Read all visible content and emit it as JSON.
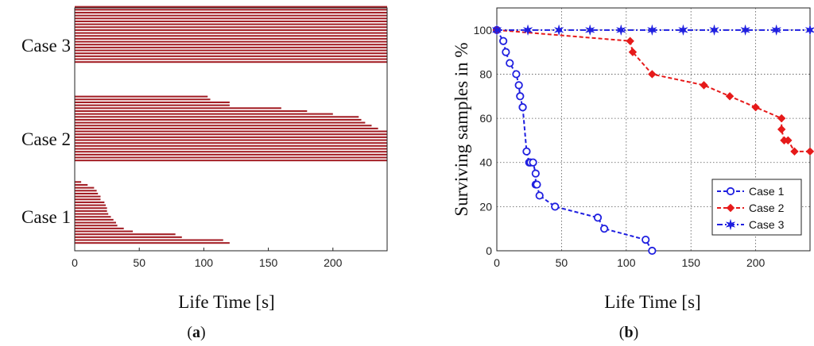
{
  "chart_data": [
    {
      "type": "bar",
      "orientation": "horizontal",
      "xlabel": "Life Time [s]",
      "caption": "(a)",
      "caption_letter": "a",
      "xlim": [
        0,
        242
      ],
      "xticks": [
        "0",
        "50",
        "100",
        "150",
        "200"
      ],
      "bar_color": "#a31e25",
      "groups": [
        {
          "label": "Case 1",
          "values": [
            120,
            115,
            83,
            78,
            45,
            38,
            33,
            32,
            30,
            28,
            26,
            25,
            25,
            24,
            23,
            20,
            20,
            18,
            17,
            15,
            10,
            5
          ]
        },
        {
          "label": "Case 2",
          "values": [
            242,
            242,
            242,
            242,
            242,
            242,
            242,
            242,
            242,
            242,
            242,
            235,
            230,
            225,
            222,
            220,
            200,
            180,
            160,
            120,
            120,
            105,
            103
          ]
        },
        {
          "label": "Case 3",
          "values": [
            242,
            242,
            242,
            242,
            242,
            242,
            242,
            242,
            242,
            242,
            242,
            242,
            242,
            242,
            242,
            242,
            242,
            242,
            242,
            242
          ]
        }
      ]
    },
    {
      "type": "line",
      "xlabel": "Life Time [s]",
      "ylabel": "Surviving samples in %",
      "caption": "(b)",
      "caption_letter": "b",
      "xlim": [
        0,
        242
      ],
      "ylim": [
        0,
        110
      ],
      "xticks": [
        "0",
        "50",
        "100",
        "150",
        "200"
      ],
      "yticks": [
        "0",
        "20",
        "40",
        "60",
        "80",
        "100"
      ],
      "grid": true,
      "legend_position": "bottom-right",
      "series": [
        {
          "name": "Case 1",
          "color": "#1f1fe0",
          "marker": "circle",
          "x": [
            0,
            5,
            7,
            10,
            15,
            17,
            18,
            20,
            20,
            23,
            25,
            26,
            28,
            30,
            30,
            31,
            33,
            45,
            78,
            83,
            115,
            120
          ],
          "y": [
            100,
            95,
            90,
            85,
            80,
            75,
            70,
            65,
            65,
            45,
            40,
            40,
            40,
            35,
            30,
            30,
            25,
            20,
            15,
            10,
            5,
            0
          ]
        },
        {
          "name": "Case 2",
          "color": "#e61a1a",
          "marker": "diamond",
          "x": [
            0,
            103,
            105,
            120,
            160,
            180,
            200,
            220,
            220,
            222,
            225,
            230,
            242
          ],
          "y": [
            100,
            95,
            90,
            80,
            75,
            70,
            65,
            60,
            55,
            50,
            50,
            45,
            45
          ]
        },
        {
          "name": "Case 3",
          "color": "#1f1fe0",
          "marker": "star",
          "x": [
            0,
            24,
            48,
            72,
            96,
            120,
            144,
            168,
            192,
            216,
            242
          ],
          "y": [
            100,
            100,
            100,
            100,
            100,
            100,
            100,
            100,
            100,
            100,
            100
          ]
        }
      ]
    }
  ]
}
